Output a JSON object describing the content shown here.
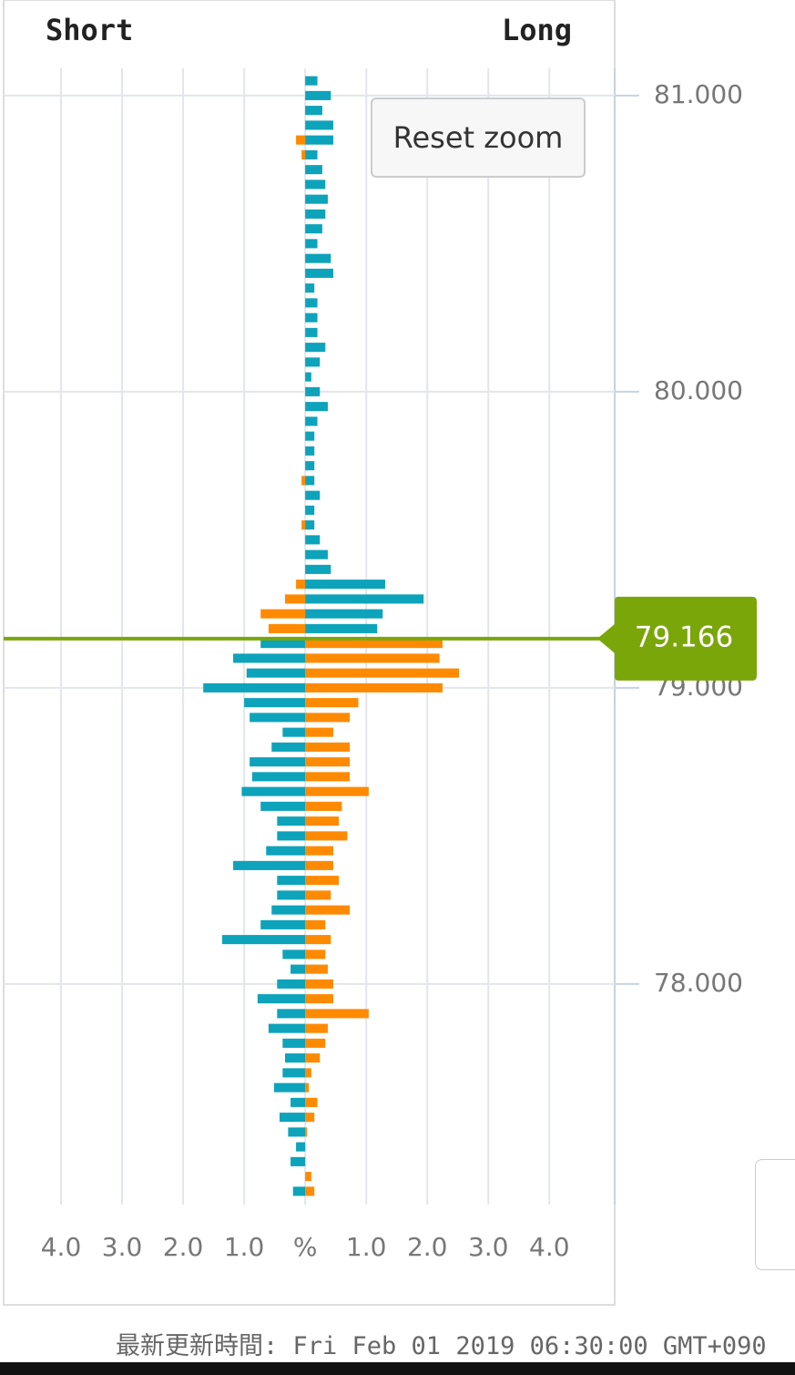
{
  "chart_data": {
    "type": "orderbook",
    "headers": {
      "short": "Short",
      "long": "Long"
    },
    "button": "Reset zoom",
    "footer": "最新更新時間: Fri Feb 01 2019 06:30:00 GMT+090",
    "current_price": {
      "value": 79.166,
      "label": "79.166"
    },
    "current_price_color": "#7aa60a",
    "y": [
      81.05,
      81.0,
      80.95,
      80.9,
      80.85,
      80.8,
      80.75,
      80.7,
      80.65,
      80.6,
      80.55,
      80.5,
      80.45,
      80.4,
      80.35,
      80.3,
      80.25,
      80.2,
      80.15,
      80.1,
      80.05,
      80.0,
      79.95,
      79.9,
      79.85,
      79.8,
      79.75,
      79.7,
      79.65,
      79.6,
      79.55,
      79.5,
      79.45,
      79.4,
      79.35,
      79.3,
      79.25,
      79.2,
      79.15,
      79.1,
      79.05,
      79.0,
      78.95,
      78.9,
      78.85,
      78.8,
      78.75,
      78.7,
      78.65,
      78.6,
      78.55,
      78.5,
      78.45,
      78.4,
      78.35,
      78.3,
      78.25,
      78.2,
      78.15,
      78.1,
      78.05,
      78.0,
      77.95,
      77.9,
      77.85,
      77.8,
      77.75,
      77.7,
      77.65,
      77.6,
      77.55,
      77.5,
      77.45,
      77.4,
      77.35,
      77.3
    ],
    "series": [
      {
        "name": "Short",
        "side": "left",
        "color_above": "#ff8a00",
        "color_below": "#0da3bb",
        "values": [
          0,
          0,
          0,
          0,
          0.15,
          0.06,
          0,
          0,
          0,
          0,
          0,
          0,
          0,
          0,
          0,
          0,
          0,
          0,
          0,
          0,
          0,
          0,
          0,
          0,
          0,
          0,
          0,
          0.06,
          0,
          0,
          0.06,
          0,
          0,
          0,
          0.15,
          0.33,
          0.73,
          0.6,
          0.73,
          1.18,
          0.96,
          1.67,
          1.0,
          0.91,
          0.37,
          0.55,
          0.91,
          0.87,
          1.04,
          0.73,
          0.46,
          0.46,
          0.64,
          1.18,
          0.46,
          0.46,
          0.55,
          0.73,
          1.36,
          0.37,
          0.24,
          0.46,
          0.78,
          0.46,
          0.6,
          0.37,
          0.33,
          0.37,
          0.51,
          0.24,
          0.42,
          0.28,
          0.15,
          0.24,
          0,
          0.2
        ]
      },
      {
        "name": "Long",
        "side": "right",
        "color_above": "#0da3bb",
        "color_below": "#ff8a00",
        "values": [
          0.2,
          0.42,
          0.28,
          0.46,
          0.46,
          0.2,
          0.28,
          0.33,
          0.37,
          0.33,
          0.28,
          0.2,
          0.42,
          0.46,
          0.15,
          0.2,
          0.2,
          0.2,
          0.33,
          0.24,
          0.1,
          0.24,
          0.37,
          0.2,
          0.15,
          0.15,
          0.15,
          0.15,
          0.24,
          0.15,
          0.15,
          0.24,
          0.37,
          0.42,
          1.31,
          1.94,
          1.27,
          1.18,
          2.25,
          2.2,
          2.52,
          2.25,
          0.87,
          0.73,
          0.46,
          0.73,
          0.73,
          0.73,
          1.04,
          0.6,
          0.55,
          0.69,
          0.46,
          0.46,
          0.55,
          0.42,
          0.73,
          0.33,
          0.42,
          0.33,
          0.37,
          0.46,
          0.46,
          1.04,
          0.37,
          0.33,
          0.24,
          0.1,
          0.06,
          0.2,
          0.15,
          0.03,
          0,
          0,
          0.1,
          0.15
        ]
      }
    ],
    "xlim": [
      -4.94,
      5.07
    ],
    "xticks": [
      {
        "value": -4,
        "label": "4.0"
      },
      {
        "value": -3,
        "label": "3.0"
      },
      {
        "value": -2,
        "label": "2.0"
      },
      {
        "value": -1,
        "label": "1.0"
      },
      {
        "value": 0,
        "label": "%"
      },
      {
        "value": 1,
        "label": "1.0"
      },
      {
        "value": 2,
        "label": "2.0"
      },
      {
        "value": 3,
        "label": "3.0"
      },
      {
        "value": 4,
        "label": "4.0"
      }
    ],
    "ylim": [
      77.255,
      81.092
    ],
    "yticks": [
      {
        "value": 81,
        "label": "81.000"
      },
      {
        "value": 80,
        "label": "80.000"
      },
      {
        "value": 79,
        "label": "79.000"
      },
      {
        "value": 78,
        "label": "78.000"
      }
    ],
    "grid": true
  }
}
